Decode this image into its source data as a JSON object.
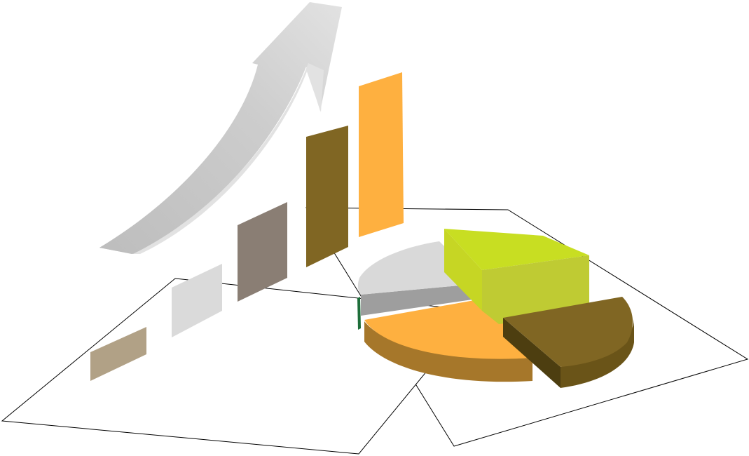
{
  "illustration": {
    "subject": "growth-chart-clipart",
    "colors": {
      "bar_1": "#b1a186",
      "bar_2": "#dadada",
      "bar_3": "#8a7e74",
      "bar_4": "#806623",
      "bar_5": "#feb040",
      "arrow": "#c9c9c9",
      "pie_lime": "#c6dc24",
      "pie_light_gray": "#d9d9d9",
      "pie_gray": "#9b9b9b",
      "pie_orange": "#feb040",
      "pie_brown": "#806623",
      "paper_outline": "#000000"
    },
    "relative_bar_heights": [
      1,
      1.5,
      2,
      3,
      3.6
    ],
    "pie_slices": [
      "lime",
      "light-gray",
      "gray",
      "orange",
      "brown"
    ]
  }
}
